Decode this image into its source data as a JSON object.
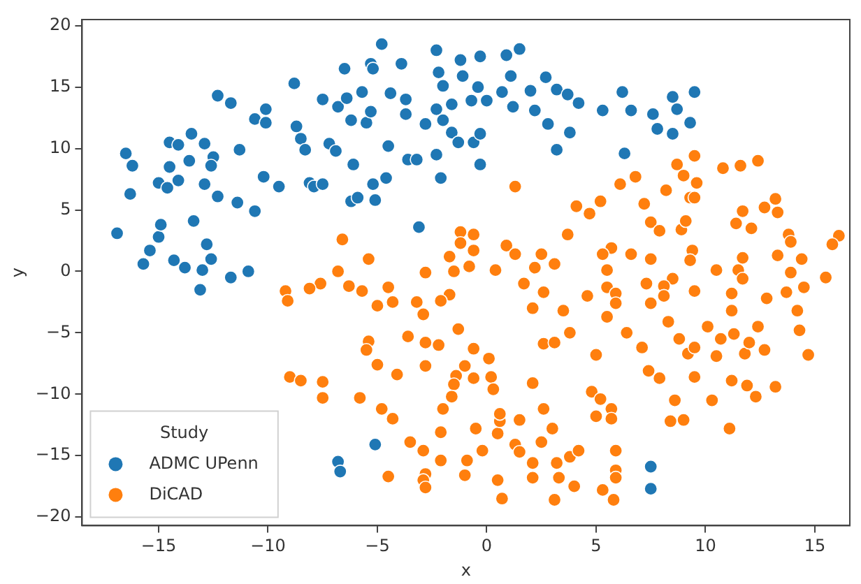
{
  "chart_data": {
    "type": "scatter",
    "xlabel": "x",
    "ylabel": "y",
    "legend_title": "Study",
    "legend": "bottom left",
    "grid": false,
    "marker": "circle",
    "xlim": [
      -18.5,
      16.6
    ],
    "ylim": [
      -20.7,
      20.5
    ],
    "xticks": [
      -15,
      -10,
      -5,
      0,
      5,
      10,
      15
    ],
    "yticks": [
      -20,
      -15,
      -10,
      -5,
      0,
      5,
      10,
      15,
      20
    ],
    "series": [
      {
        "name": "ADMC UPenn",
        "color": "#1f77b4",
        "x": [
          -16.9,
          -16.5,
          -16.2,
          -16.3,
          -15.7,
          -15.4,
          -15.0,
          -14.9,
          -15.0,
          -14.6,
          -14.5,
          -14.5,
          -14.1,
          -14.1,
          -14.3,
          -13.8,
          -13.6,
          -13.5,
          -13.4,
          -12.9,
          -12.5,
          -12.6,
          -12.9,
          -12.8,
          -12.6,
          -13.0,
          -12.3,
          -12.3,
          -11.7,
          -11.3,
          -11.4,
          -11.7,
          -10.9,
          -10.6,
          -13.1,
          -10.6,
          -10.1,
          -10.1,
          -10.2,
          -9.5,
          -8.8,
          -8.7,
          -8.5,
          -8.3,
          -8.1,
          -7.9,
          -7.5,
          -7.5,
          -7.2,
          -6.9,
          -6.8,
          -6.4,
          -6.5,
          -6.2,
          -6.1,
          -6.2,
          -5.9,
          -5.7,
          -5.5,
          -5.3,
          -5.3,
          -5.2,
          -5.1,
          -5.2,
          -4.8,
          -4.6,
          -4.5,
          -4.4,
          -3.9,
          -3.7,
          -3.7,
          -3.6,
          -3.2,
          -3.1,
          -2.8,
          -2.3,
          -2.2,
          -2.0,
          -1.2,
          -1.1,
          -0.3,
          -0.4,
          -0.7,
          0.0,
          0.9,
          1.5,
          1.1,
          0.7,
          1.2,
          2.0,
          2.2,
          2.7,
          3.2,
          3.7,
          4.2,
          2.8,
          3.8,
          3.2,
          -1.6,
          -2.3,
          -2.0,
          -1.6,
          -1.3,
          -0.6,
          -0.3,
          -2.3,
          -2.1,
          -0.3,
          6.2,
          5.3,
          6.6,
          7.6,
          8.5,
          8.7,
          9.5,
          7.8,
          8.5,
          9.3,
          6.3,
          -6.8,
          -6.7,
          -5.1,
          7.5,
          7.5
        ],
        "values": [
          3.1,
          9.6,
          8.6,
          6.3,
          0.6,
          1.7,
          2.8,
          3.8,
          7.2,
          6.8,
          8.5,
          10.5,
          10.3,
          7.4,
          0.9,
          0.3,
          9.0,
          11.2,
          4.1,
          10.4,
          9.3,
          8.6,
          7.1,
          2.2,
          1.0,
          0.1,
          6.1,
          14.3,
          13.7,
          9.9,
          5.6,
          -0.5,
          0.0,
          4.9,
          -1.5,
          12.4,
          13.2,
          12.1,
          7.7,
          6.9,
          15.3,
          11.8,
          10.8,
          9.9,
          7.2,
          6.9,
          7.1,
          14.0,
          10.4,
          9.8,
          13.4,
          14.1,
          16.5,
          12.3,
          8.7,
          5.7,
          6.0,
          14.6,
          12.1,
          13.0,
          16.9,
          16.5,
          5.8,
          7.1,
          18.5,
          7.6,
          10.2,
          14.5,
          16.9,
          14.0,
          12.8,
          9.1,
          9.1,
          3.6,
          12.0,
          18.0,
          16.2,
          15.1,
          17.2,
          15.9,
          17.5,
          15.0,
          13.9,
          13.9,
          17.6,
          18.1,
          15.9,
          14.6,
          13.4,
          14.7,
          13.1,
          15.8,
          14.8,
          14.4,
          13.7,
          12.0,
          11.3,
          9.9,
          13.6,
          13.2,
          12.3,
          11.3,
          10.5,
          10.5,
          11.2,
          9.5,
          7.6,
          8.7,
          14.6,
          13.1,
          13.1,
          12.8,
          14.2,
          13.2,
          14.6,
          11.6,
          11.2,
          12.1,
          9.6,
          -15.5,
          -16.3,
          -14.1,
          -15.9,
          -17.7
        ]
      },
      {
        "name": "DiCAD",
        "color": "#ff7f0e",
        "x": [
          -6.6,
          -5.4,
          -6.8,
          -2.8,
          -6.3,
          -4.5,
          -7.6,
          -8.1,
          -9.2,
          -5.7,
          -9.1,
          -5.0,
          -4.3,
          -3.2,
          -2.9,
          -3.6,
          -2.8,
          -5.4,
          -5.5,
          -5.0,
          -4.1,
          -2.8,
          -9.0,
          -8.5,
          -7.5,
          -7.5,
          -5.8,
          -4.8,
          -4.3,
          -3.5,
          -2.9,
          -4.5,
          -2.8,
          -2.9,
          -2.8,
          1.3,
          4.1,
          4.7,
          5.2,
          6.1,
          6.8,
          7.2,
          8.2,
          8.7,
          9.5,
          9.0,
          9.6,
          9.3,
          9.5,
          10.8,
          11.6,
          12.4,
          7.5,
          7.9,
          8.9,
          9.1,
          11.7,
          11.4,
          12.1,
          12.7,
          13.2,
          13.3,
          13.8,
          13.9,
          16.1,
          15.8,
          13.3,
          14.4,
          13.9,
          14.5,
          15.5,
          11.7,
          11.5,
          11.7,
          10.5,
          9.4,
          9.3,
          7.5,
          8.5,
          7.3,
          8.1,
          6.6,
          5.7,
          5.3,
          5.5,
          5.5,
          3.7,
          2.5,
          2.2,
          3.1,
          1.7,
          2.6,
          0.9,
          1.3,
          0.4,
          -1.2,
          -0.6,
          -1.2,
          -0.6,
          -1.7,
          -1.5,
          -0.8,
          -1.7,
          4.6,
          9.5,
          11.2,
          13.7,
          -2.1,
          2.1,
          3.5,
          5.9,
          5.9,
          5.5,
          7.5,
          8.1,
          11.2,
          12.8,
          14.2,
          -2.2,
          -1.3,
          -0.6,
          0.1,
          -1.0,
          -1.4,
          -1.5,
          -0.6,
          0.2,
          0.3,
          -1.6,
          -2.0,
          -2.1,
          -2.1,
          -0.9,
          -1.0,
          -0.5,
          -0.2,
          0.5,
          0.7,
          0.5,
          0.6,
          0.6,
          1.5,
          1.3,
          1.5,
          2.1,
          2.1,
          2.1,
          2.6,
          3.0,
          2.5,
          3.2,
          3.3,
          3.1,
          3.8,
          4.2,
          4.0,
          2.6,
          3.1,
          3.8,
          5.0,
          4.8,
          5.2,
          5.7,
          5.0,
          5.7,
          5.9,
          5.9,
          5.9,
          5.3,
          5.8,
          6.4,
          7.1,
          7.4,
          7.9,
          8.3,
          8.8,
          9.2,
          9.5,
          9.5,
          8.6,
          8.4,
          9.0,
          10.1,
          10.5,
          10.7,
          11.3,
          11.2,
          10.3,
          11.1,
          11.8,
          12.0,
          12.4,
          11.9,
          12.3,
          12.7,
          13.2,
          14.3,
          14.7
        ],
        "values": [
          2.6,
          1.0,
          0.0,
          -0.1,
          -1.2,
          -1.3,
          -1.0,
          -1.4,
          -1.6,
          -1.6,
          -2.4,
          -2.8,
          -2.5,
          -2.5,
          -3.5,
          -5.3,
          -5.8,
          -5.7,
          -6.4,
          -7.6,
          -8.4,
          -7.7,
          -8.6,
          -8.9,
          -9.0,
          -10.3,
          -10.3,
          -11.2,
          -12.0,
          -13.9,
          -14.6,
          -16.7,
          -16.5,
          -17.0,
          -17.6,
          6.9,
          5.3,
          4.7,
          5.7,
          7.1,
          7.7,
          5.5,
          6.6,
          8.7,
          9.4,
          7.8,
          7.2,
          6.0,
          6.0,
          8.4,
          8.6,
          9.0,
          4.0,
          3.3,
          3.4,
          4.1,
          4.9,
          3.9,
          3.5,
          5.2,
          5.9,
          4.8,
          3.0,
          2.4,
          2.9,
          2.2,
          1.3,
          1.0,
          -0.1,
          -1.3,
          -0.5,
          1.1,
          0.1,
          -0.6,
          0.1,
          1.7,
          0.9,
          1.0,
          -0.6,
          -1.0,
          -1.2,
          1.4,
          1.9,
          1.4,
          0.1,
          -1.3,
          3.0,
          1.4,
          0.3,
          0.6,
          -1.0,
          -1.7,
          2.1,
          1.4,
          0.1,
          3.2,
          3.0,
          2.3,
          1.7,
          1.2,
          0.0,
          0.4,
          -1.9,
          -2.0,
          -1.6,
          -1.8,
          -1.7,
          -2.4,
          -3.0,
          -3.2,
          -1.8,
          -2.6,
          -3.7,
          -2.6,
          -2.0,
          -3.2,
          -2.2,
          -3.2,
          -6.0,
          -4.7,
          -6.3,
          -7.1,
          -7.7,
          -8.5,
          -9.2,
          -8.7,
          -8.6,
          -9.6,
          -10.2,
          -11.2,
          -13.1,
          -15.4,
          -15.4,
          -16.6,
          -12.8,
          -14.6,
          -17.0,
          -18.5,
          -13.2,
          -12.2,
          -11.6,
          -12.1,
          -14.1,
          -14.7,
          -15.6,
          -16.8,
          -9.1,
          -11.2,
          -12.8,
          -13.9,
          -15.6,
          -16.8,
          -18.6,
          -15.1,
          -14.6,
          -17.5,
          -5.9,
          -5.8,
          -5.0,
          -6.8,
          -9.8,
          -10.4,
          -11.2,
          -11.8,
          -12.0,
          -14.6,
          -16.2,
          -16.8,
          -17.8,
          -18.6,
          -5.0,
          -6.2,
          -8.1,
          -8.7,
          -4.1,
          -5.5,
          -6.7,
          -6.2,
          -8.6,
          -10.5,
          -12.2,
          -12.1,
          -4.5,
          -6.9,
          -5.5,
          -5.1,
          -8.9,
          -10.5,
          -12.8,
          -6.7,
          -5.8,
          -4.5,
          -9.3,
          -10.2,
          -6.4,
          -9.4,
          -4.8,
          -6.8
        ]
      }
    ]
  }
}
